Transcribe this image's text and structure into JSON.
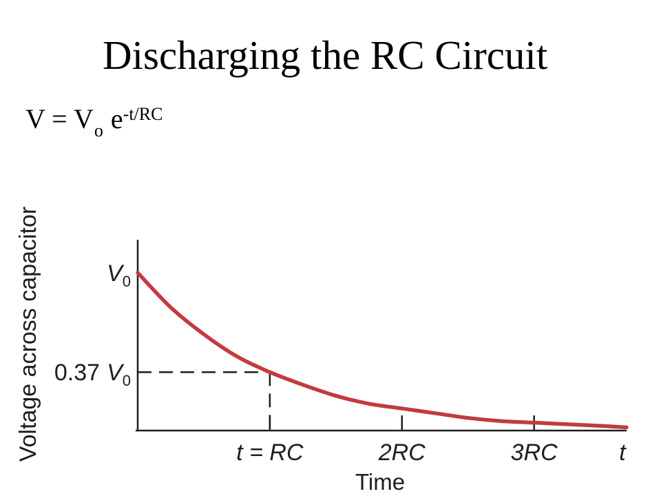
{
  "slide": {
    "title": "Discharging the RC Circuit",
    "equation": {
      "lhs": "V = V",
      "lhs_subscript": "o",
      "base": "e",
      "exponent": "-t/RC"
    }
  },
  "colors": {
    "axes": "#1e1e1e",
    "curve": "#c23b3e",
    "background": "#ffffff"
  },
  "chart_data": {
    "type": "line",
    "xlabel": "Time",
    "ylabel": "Voltage across capacitor",
    "xlim": [
      0,
      3.7
    ],
    "ylim": [
      0,
      1.2
    ],
    "x_ticks": [
      {
        "value": 1,
        "label": "t = RC"
      },
      {
        "value": 2,
        "label": "2RC"
      },
      {
        "value": 3,
        "label": "3RC"
      }
    ],
    "x_axis_end_label": "t",
    "y_ticks": [
      {
        "value": 1,
        "coefficient": "",
        "symbol": "V",
        "subscript": "0"
      },
      {
        "value": 0.37,
        "coefficient": "0.37",
        "symbol": "V",
        "subscript": "0"
      }
    ],
    "guides": [
      {
        "x": 1,
        "y": 0.37,
        "style": "dashed"
      }
    ],
    "grid": false,
    "legend": "none",
    "series": [
      {
        "color": "#c23b3e",
        "x": [
          0,
          0.25,
          0.5,
          0.75,
          1,
          1.25,
          1.5,
          1.75,
          2,
          2.25,
          2.5,
          2.75,
          3,
          3.25,
          3.5,
          3.7
        ],
        "y": [
          1.0,
          0.78,
          0.61,
          0.47,
          0.37,
          0.29,
          0.22,
          0.17,
          0.14,
          0.11,
          0.08,
          0.06,
          0.05,
          0.04,
          0.03,
          0.02
        ]
      }
    ]
  }
}
